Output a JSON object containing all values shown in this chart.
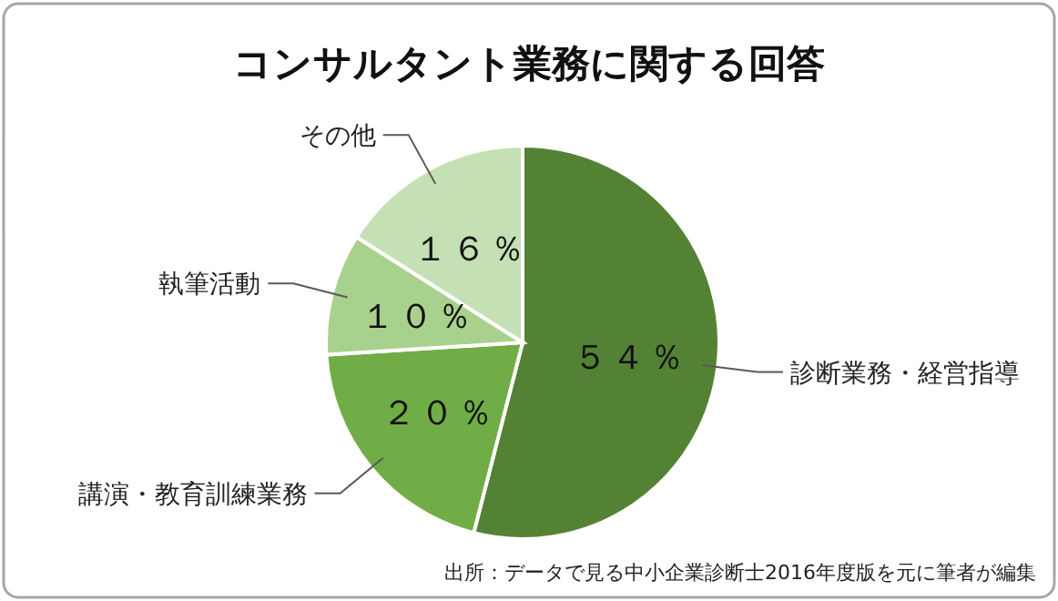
{
  "chart_data": {
    "type": "pie",
    "title": "コンサルタント業務に関する回答",
    "categories": [
      "診断業務・経営指導",
      "講演・教育訓練業務",
      "執筆活動",
      "その他"
    ],
    "values": [
      54,
      20,
      10,
      16
    ],
    "colors": [
      "#548235",
      "#70ad47",
      "#a9d18e",
      "#c5e0b4"
    ],
    "value_labels": [
      "５４％",
      "２０％",
      "１０％",
      "１６％"
    ],
    "annotations": [
      "出所：データで見る中小企業診断士2016年度版を元に筆者が編集"
    ]
  }
}
